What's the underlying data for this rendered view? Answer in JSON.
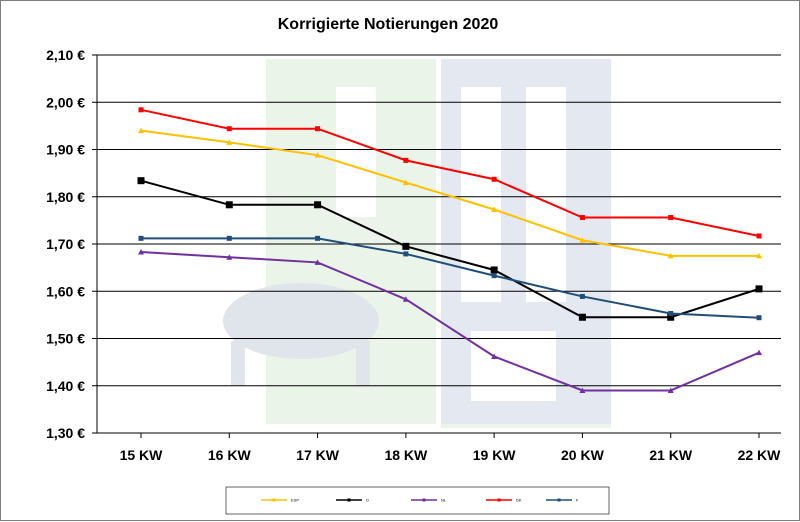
{
  "chart_data": {
    "type": "line",
    "title": "Korrigierte Notierungen 2020",
    "categories": [
      "15 KW",
      "16 KW",
      "17 KW",
      "18 KW",
      "19 KW",
      "20 KW",
      "21 KW",
      "22 KW"
    ],
    "y_tick_labels": [
      "2,10 €",
      "2,00 €",
      "1,90 €",
      "1,80 €",
      "1,70 €",
      "1,60 €",
      "1,50 €",
      "1,40 €",
      "1,30 €"
    ],
    "ylim": [
      1.3,
      2.1
    ],
    "ystep": 0.1,
    "grid": true,
    "legend_position": "bottom",
    "series": [
      {
        "name": "ESP",
        "color": "#ffc000",
        "marker": "triangle",
        "values": [
          1.94,
          1.915,
          1.888,
          1.83,
          1.773,
          1.708,
          1.675,
          1.675
        ]
      },
      {
        "name": "D",
        "color": "#000000",
        "marker": "square",
        "values": [
          1.834,
          1.783,
          1.783,
          1.695,
          1.645,
          1.545,
          1.545,
          1.605
        ]
      },
      {
        "name": "NL",
        "color": "#7030a0",
        "marker": "triangle",
        "values": [
          1.683,
          1.672,
          1.661,
          1.583,
          1.462,
          1.39,
          1.39,
          1.47
        ]
      },
      {
        "name": "DK",
        "color": "#ff0000",
        "marker": "square",
        "values": [
          1.984,
          1.944,
          1.944,
          1.877,
          1.837,
          1.756,
          1.756,
          1.717
        ]
      },
      {
        "name": "F",
        "color": "#1f4e79",
        "marker": "square",
        "values": [
          1.712,
          1.712,
          1.712,
          1.679,
          1.633,
          1.589,
          1.553,
          1.544
        ]
      }
    ]
  }
}
